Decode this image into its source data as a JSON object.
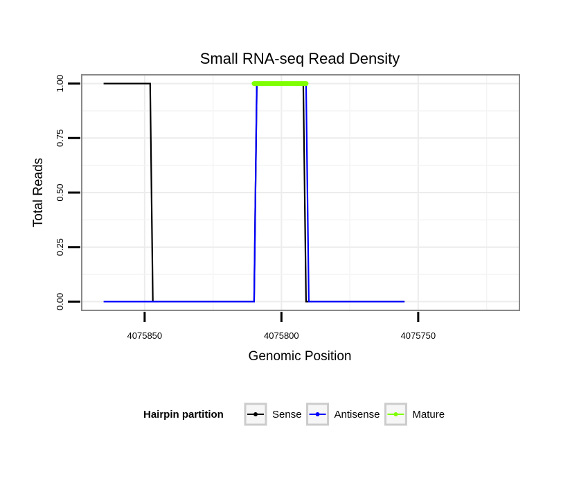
{
  "chart_data": {
    "type": "line",
    "title": "Small RNA-seq Read Density",
    "xlabel": "Genomic Position",
    "ylabel": "Total Reads",
    "x_reversed": true,
    "xlim": [
      4075873,
      4075713
    ],
    "ylim": [
      -0.04,
      1.04
    ],
    "xticks": [
      4075850,
      4075800,
      4075750
    ],
    "xtick_labels": [
      "4075850",
      "4075800",
      "4075750"
    ],
    "yticks": [
      0,
      0.25,
      0.5,
      0.75,
      1
    ],
    "ytick_labels": [
      "0.00",
      "0.25",
      "0.50",
      "0.75",
      "1.00"
    ],
    "grid": true,
    "legend_title": "Hairpin partition",
    "legend_position": "bottom",
    "series": [
      {
        "name": "Sense",
        "color": "#000000",
        "x": [
          4075865,
          4075848,
          4075847,
          4075810,
          4075809,
          4075792,
          4075791,
          4075755
        ],
        "y": [
          1,
          1,
          0,
          0,
          1,
          1,
          0,
          0
        ]
      },
      {
        "name": "Antisense",
        "color": "#0000ff",
        "x": [
          4075865,
          4075810,
          4075809,
          4075791,
          4075790,
          4075755
        ],
        "y": [
          0,
          0,
          1,
          1,
          0,
          0
        ]
      },
      {
        "name": "Mature",
        "color": "#7fff00",
        "x": [
          4075810,
          4075791
        ],
        "y": [
          1,
          1
        ]
      }
    ]
  }
}
